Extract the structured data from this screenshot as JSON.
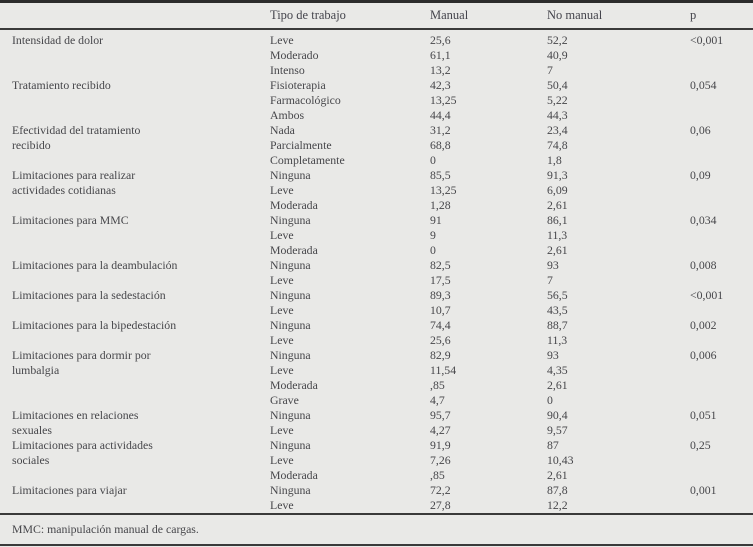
{
  "colors": {
    "background": "#e9e9e7",
    "text": "#46464a",
    "rule_dark": "#2c2c2c"
  },
  "table": {
    "columns": {
      "category": "",
      "tipo": "Tipo de trabajo",
      "manual": "Manual",
      "no_manual": "No manual",
      "p": "p"
    },
    "groups": [
      {
        "category": "Intensidad de dolor",
        "rows": [
          [
            "Leve",
            "25,6",
            "52,2",
            "<0,001"
          ],
          [
            "Moderado",
            "61,1",
            "40,9",
            ""
          ],
          [
            "Intenso",
            "13,2",
            "7",
            ""
          ]
        ]
      },
      {
        "category": "Tratamiento recibido",
        "rows": [
          [
            "Fisioterapia",
            "42,3",
            "50,4",
            "0,054"
          ],
          [
            "Farmacológico",
            "13,25",
            "5,22",
            ""
          ],
          [
            "Ambos",
            "44,4",
            "44,3",
            ""
          ]
        ]
      },
      {
        "category": "Efectividad del tratamiento\nrecibido",
        "rows": [
          [
            "Nada",
            "31,2",
            "23,4",
            "0,06"
          ],
          [
            "Parcialmente",
            "68,8",
            "74,8",
            ""
          ],
          [
            "Completamente",
            "0",
            "1,8",
            ""
          ]
        ]
      },
      {
        "category": "Limitaciones para realizar\nactividades cotidianas",
        "rows": [
          [
            "Ninguna",
            "85,5",
            "91,3",
            "0,09"
          ],
          [
            "Leve",
            "13,25",
            "6,09",
            ""
          ],
          [
            "Moderada",
            "1,28",
            "2,61",
            ""
          ]
        ]
      },
      {
        "category": "Limitaciones para MMC",
        "rows": [
          [
            "Ninguna",
            "91",
            "86,1",
            "0,034"
          ],
          [
            "Leve",
            "9",
            "11,3",
            ""
          ],
          [
            "Moderada",
            "0",
            "2,61",
            ""
          ]
        ]
      },
      {
        "category": "Limitaciones para la deambulación",
        "rows": [
          [
            "Ninguna",
            "82,5",
            "93",
            "0,008"
          ],
          [
            "Leve",
            "17,5",
            "7",
            ""
          ]
        ]
      },
      {
        "category": "Limitaciones para la sedestación",
        "rows": [
          [
            "Ninguna",
            "89,3",
            "56,5",
            "<0,001"
          ],
          [
            "Leve",
            "10,7",
            "43,5",
            ""
          ]
        ]
      },
      {
        "category": "Limitaciones para la bipedestación",
        "rows": [
          [
            "Ninguna",
            "74,4",
            "88,7",
            "0,002"
          ],
          [
            "Leve",
            "25,6",
            "11,3",
            ""
          ]
        ]
      },
      {
        "category": "Limitaciones para dormir por\nlumbalgia",
        "rows": [
          [
            "Ninguna",
            "82,9",
            "93",
            "0,006"
          ],
          [
            "Leve",
            "11,54",
            "4,35",
            ""
          ],
          [
            "Moderada",
            ",85",
            "2,61",
            ""
          ],
          [
            "Grave",
            "4,7",
            "0",
            ""
          ]
        ]
      },
      {
        "category": "Limitaciones en relaciones\nsexuales",
        "rows": [
          [
            "Ninguna",
            "95,7",
            "90,4",
            "0,051"
          ],
          [
            "Leve",
            "4,27",
            "9,57",
            ""
          ]
        ]
      },
      {
        "category": "Limitaciones para actividades\nsociales",
        "rows": [
          [
            "Ninguna",
            "91,9",
            "87",
            "0,25"
          ],
          [
            "Leve",
            "7,26",
            "10,43",
            ""
          ],
          [
            "Moderada",
            ",85",
            "2,61",
            ""
          ]
        ]
      },
      {
        "category": "Limitaciones para viajar",
        "rows": [
          [
            "Ninguna",
            "72,2",
            "87,8",
            "0,001"
          ],
          [
            "Leve",
            "27,8",
            "12,2",
            ""
          ]
        ]
      }
    ],
    "footnote": "MMC: manipulación manual de cargas."
  }
}
